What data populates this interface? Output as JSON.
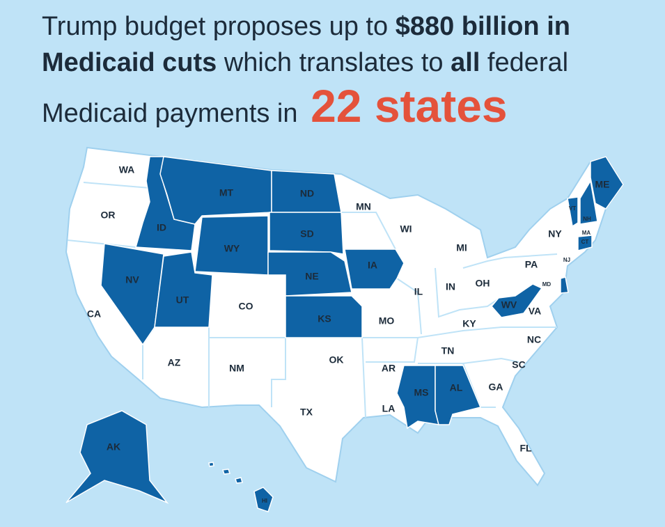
{
  "title": {
    "lines": [
      {
        "segments": [
          {
            "text": "Trump budget proposes up to ",
            "bold": false
          },
          {
            "text": "$880 billion in",
            "bold": true
          }
        ]
      },
      {
        "segments": [
          {
            "text": "Medicaid cuts",
            "bold": true
          },
          {
            "text": " which translates to ",
            "bold": false
          },
          {
            "text": "all",
            "bold": true
          },
          {
            "text": " federal",
            "bold": false
          }
        ]
      },
      {
        "segments": [
          {
            "text": "Medicaid payments in ",
            "bold": false
          },
          {
            "text": "22 states",
            "bold": true,
            "accent": true
          }
        ]
      }
    ],
    "text_color": "#1c2b3a",
    "accent_color": "#e4523b"
  },
  "map": {
    "background": "#bfe3f7",
    "base_color": "#ffffff",
    "highlight_color": "#0f63a5",
    "label_color": "#1c2b3a",
    "states": [
      {
        "label": "WA",
        "highlighted": false
      },
      {
        "label": "OR",
        "highlighted": false
      },
      {
        "label": "CA",
        "highlighted": false
      },
      {
        "label": "NV",
        "highlighted": true
      },
      {
        "label": "ID",
        "highlighted": true
      },
      {
        "label": "MT",
        "highlighted": true
      },
      {
        "label": "WY",
        "highlighted": true
      },
      {
        "label": "UT",
        "highlighted": true
      },
      {
        "label": "CO",
        "highlighted": false
      },
      {
        "label": "AZ",
        "highlighted": false
      },
      {
        "label": "NM",
        "highlighted": false
      },
      {
        "label": "ND",
        "highlighted": true
      },
      {
        "label": "SD",
        "highlighted": true
      },
      {
        "label": "NE",
        "highlighted": true
      },
      {
        "label": "KS",
        "highlighted": true
      },
      {
        "label": "OK",
        "highlighted": false
      },
      {
        "label": "TX",
        "highlighted": false
      },
      {
        "label": "MN",
        "highlighted": false
      },
      {
        "label": "IA",
        "highlighted": true
      },
      {
        "label": "MO",
        "highlighted": false
      },
      {
        "label": "AR",
        "highlighted": false
      },
      {
        "label": "LA",
        "highlighted": false
      },
      {
        "label": "WI",
        "highlighted": false
      },
      {
        "label": "IL",
        "highlighted": false
      },
      {
        "label": "MS",
        "highlighted": true
      },
      {
        "label": "MI",
        "highlighted": false
      },
      {
        "label": "IN",
        "highlighted": false
      },
      {
        "label": "OH",
        "highlighted": false
      },
      {
        "label": "KY",
        "highlighted": false
      },
      {
        "label": "TN",
        "highlighted": false
      },
      {
        "label": "AL",
        "highlighted": true
      },
      {
        "label": "GA",
        "highlighted": false
      },
      {
        "label": "FL",
        "highlighted": false
      },
      {
        "label": "SC",
        "highlighted": false
      },
      {
        "label": "NC",
        "highlighted": false
      },
      {
        "label": "VA",
        "highlighted": false
      },
      {
        "label": "WV",
        "highlighted": true
      },
      {
        "label": "PA",
        "highlighted": false
      },
      {
        "label": "NY",
        "highlighted": false
      },
      {
        "label": "VT",
        "highlighted": true
      },
      {
        "label": "NH",
        "highlighted": true
      },
      {
        "label": "ME",
        "highlighted": true
      },
      {
        "label": "MA",
        "highlighted": false
      },
      {
        "label": "CT",
        "highlighted": true
      },
      {
        "label": "NJ",
        "highlighted": false
      },
      {
        "label": "MD",
        "highlighted": false
      },
      {
        "label": "AK",
        "highlighted": true
      },
      {
        "label": "HI",
        "highlighted": true
      }
    ]
  }
}
